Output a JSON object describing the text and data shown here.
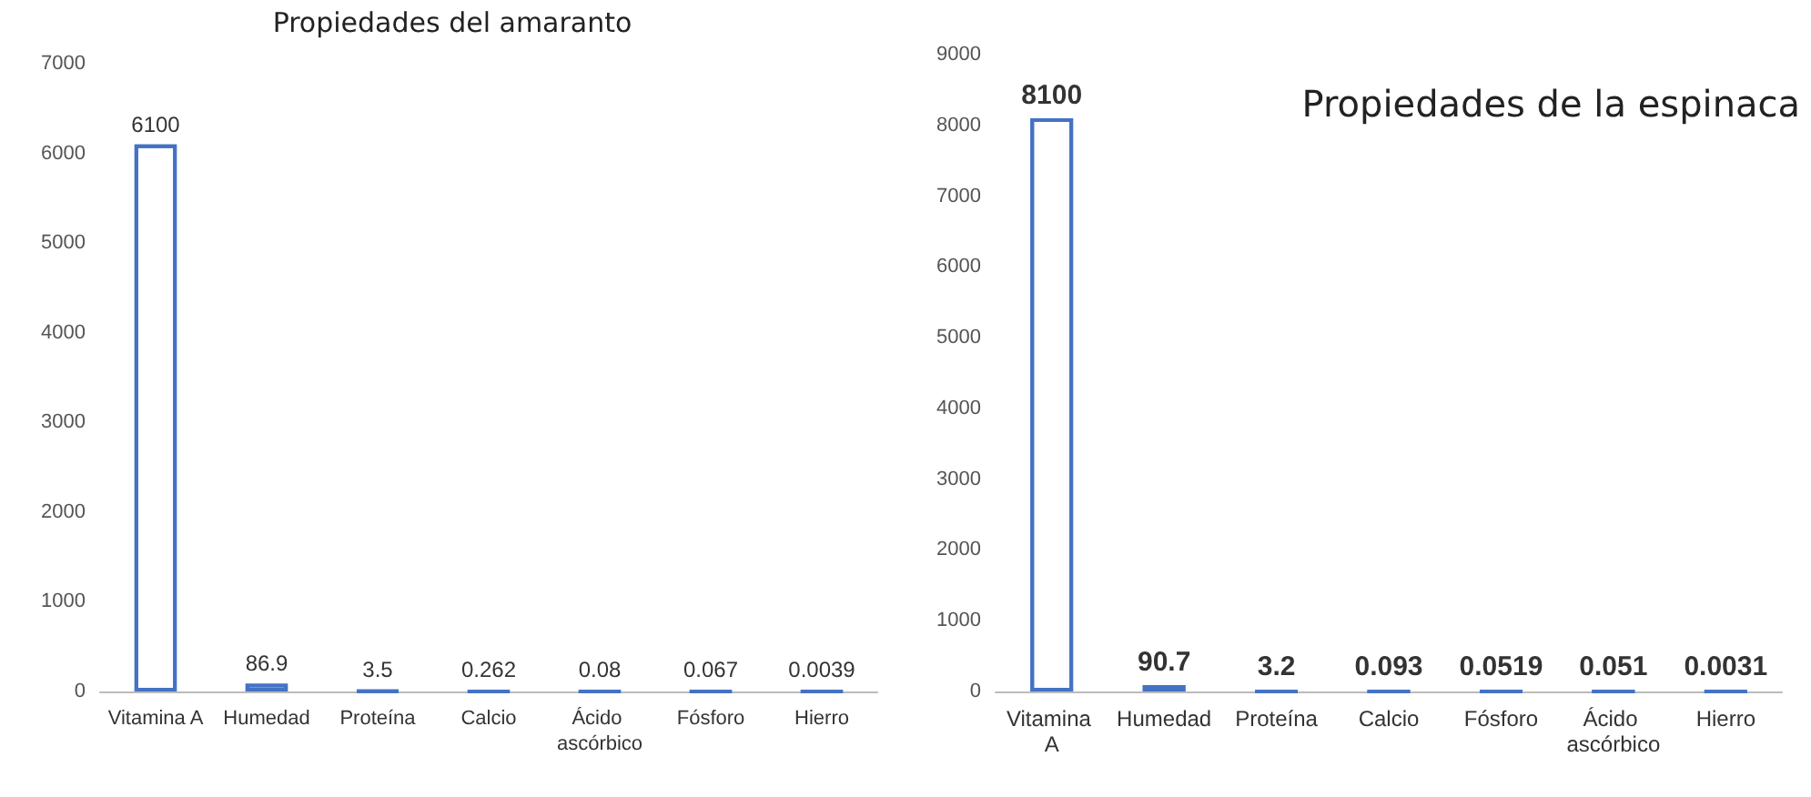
{
  "chart_data": [
    {
      "type": "bar",
      "title": "Propiedades del amaranto",
      "categories": [
        "Vitamina A",
        "Humedad",
        "Proteína",
        "Calcio",
        "Ácido ascórbico",
        "Fósforo",
        "Hierro"
      ],
      "values": [
        6100,
        86.9,
        3.5,
        0.262,
        0.08,
        0.067,
        0.0039
      ],
      "color": "#4472c4",
      "ylim": [
        0,
        7000
      ],
      "yticks": [
        0,
        1000,
        2000,
        3000,
        4000,
        5000,
        6000,
        7000
      ],
      "data_labels": true,
      "grid": false
    },
    {
      "type": "bar",
      "title": "Propiedades de la espinaca",
      "categories": [
        "Vitamina A",
        "Humedad",
        "Proteína",
        "Calcio",
        "Fósforo",
        "Ácido ascórbico",
        "Hierro"
      ],
      "values": [
        8100,
        90.7,
        3.2,
        0.093,
        0.0519,
        0.051,
        0.0031
      ],
      "color": "#4472c4",
      "ylim": [
        0,
        9000
      ],
      "yticks": [
        0,
        1000,
        2000,
        3000,
        4000,
        5000,
        6000,
        7000,
        8000,
        9000
      ],
      "data_labels": true,
      "grid": false
    }
  ]
}
